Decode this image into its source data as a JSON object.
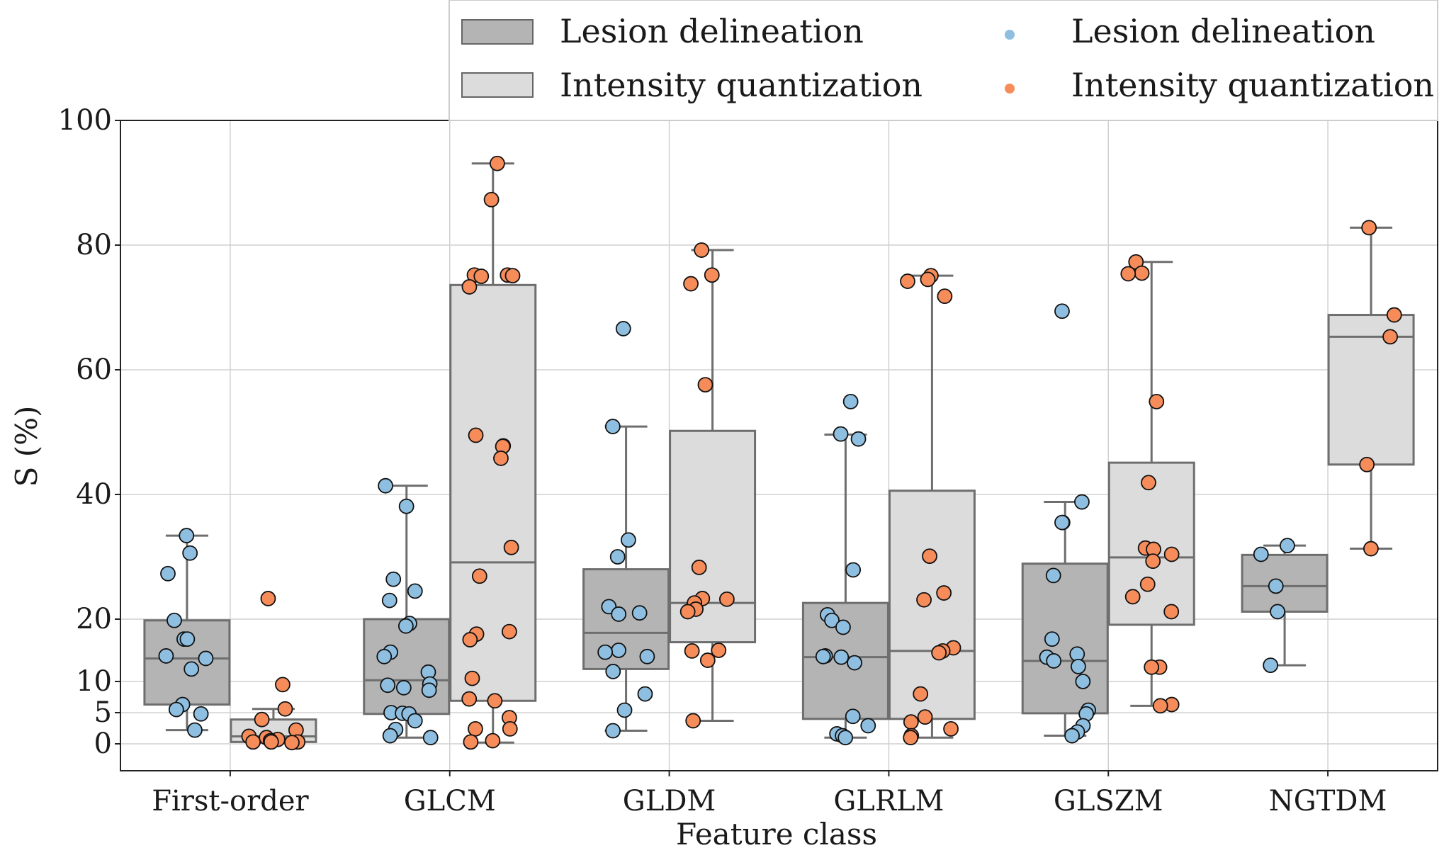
{
  "chart_data": {
    "type": "box",
    "title": "",
    "xlabel": "Feature class",
    "ylabel": "S (%)",
    "ylim": [
      -4.5,
      100
    ],
    "yticks": [
      0,
      5,
      10,
      20,
      40,
      60,
      80,
      100
    ],
    "grid": true,
    "categories": [
      "First-order",
      "GLCM",
      "GLDM",
      "GLRLM",
      "GLSZM",
      "NGTDM"
    ],
    "legend": {
      "position": "top-right",
      "box_entries": [
        {
          "label": "Lesion delineation",
          "color": "#b4b4b4"
        },
        {
          "label": "Intensity quantization",
          "color": "#dcdcdc"
        }
      ],
      "point_entries": [
        {
          "label": "Lesion delineation",
          "color": "#8fbfe0"
        },
        {
          "label": "Intensity quantization",
          "color": "#f58c5a"
        }
      ]
    },
    "series": [
      {
        "name": "Lesion delineation",
        "box_color": "#b4b4b4",
        "point_color": "#8fbfe0",
        "boxes": [
          {
            "category": "First-order",
            "whisker_low": 2.2,
            "q1": 6.3,
            "median": 13.7,
            "q3": 19.8,
            "whisker_high": 33.4
          },
          {
            "category": "GLCM",
            "whisker_low": 1.0,
            "q1": 4.8,
            "median": 10.2,
            "q3": 20.0,
            "whisker_high": 41.4
          },
          {
            "category": "GLDM",
            "whisker_low": 2.1,
            "q1": 12.0,
            "median": 17.8,
            "q3": 28.0,
            "whisker_high": 50.9
          },
          {
            "category": "GLRLM",
            "whisker_low": 1.0,
            "q1": 4.0,
            "median": 13.9,
            "q3": 22.6,
            "whisker_high": 49.6
          },
          {
            "category": "GLSZM",
            "whisker_low": 1.3,
            "q1": 4.9,
            "median": 13.3,
            "q3": 28.9,
            "whisker_high": 38.8
          },
          {
            "category": "NGTDM",
            "whisker_low": 12.6,
            "q1": 21.2,
            "median": 25.3,
            "q3": 30.3,
            "whisker_high": 31.8
          }
        ],
        "points": [
          [
            33.4,
            30.6,
            27.3,
            19.8,
            16.8,
            16.8,
            14.1,
            13.7,
            12.0,
            6.3,
            5.5,
            4.8,
            2.2
          ],
          [
            41.4,
            38.1,
            26.4,
            24.5,
            23.0,
            19.3,
            18.9,
            14.7,
            14.0,
            11.5,
            9.6,
            9.4,
            9.0,
            8.6,
            5.0,
            4.9,
            4.8,
            3.7,
            2.3,
            1.3,
            1.0
          ],
          [
            66.6,
            50.9,
            32.7,
            30.0,
            22.0,
            21.0,
            20.8,
            15.0,
            14.7,
            14.0,
            11.6,
            8.0,
            5.4,
            2.1
          ],
          [
            54.9,
            49.7,
            48.9,
            27.9,
            20.7,
            19.8,
            18.7,
            14.1,
            14.0,
            13.9,
            13.0,
            4.4,
            2.9,
            1.6,
            1.3,
            1.0
          ],
          [
            69.4,
            38.8,
            35.5,
            35.5,
            27.0,
            16.8,
            14.4,
            13.9,
            13.3,
            12.4,
            10.0,
            5.4,
            4.8,
            2.9,
            1.9,
            1.3
          ],
          [
            31.8,
            30.4,
            25.3,
            21.2,
            12.6
          ]
        ]
      },
      {
        "name": "Intensity quantization",
        "box_color": "#dcdcdc",
        "point_color": "#f58c5a",
        "boxes": [
          {
            "category": "First-order",
            "whisker_low": 0.2,
            "q1": 0.3,
            "median": 1.2,
            "q3": 3.9,
            "whisker_high": 5.6
          },
          {
            "category": "GLCM",
            "whisker_low": 0.2,
            "q1": 6.9,
            "median": 29.1,
            "q3": 73.6,
            "whisker_high": 93.1
          },
          {
            "category": "GLDM",
            "whisker_low": 3.7,
            "q1": 16.3,
            "median": 22.6,
            "q3": 50.2,
            "whisker_high": 79.2
          },
          {
            "category": "GLRLM",
            "whisker_low": 1.0,
            "q1": 4.0,
            "median": 14.9,
            "q3": 40.6,
            "whisker_high": 75.1
          },
          {
            "category": "GLSZM",
            "whisker_low": 6.1,
            "q1": 19.1,
            "median": 29.9,
            "q3": 45.1,
            "whisker_high": 77.3
          },
          {
            "category": "NGTDM",
            "whisker_low": 31.3,
            "q1": 44.8,
            "median": 65.3,
            "q3": 68.8,
            "whisker_high": 82.8
          }
        ],
        "points": [
          [
            23.3,
            9.5,
            5.6,
            3.9,
            2.2,
            1.2,
            1.0,
            0.7,
            0.5,
            0.3,
            0.3,
            0.3,
            0.2
          ],
          [
            93.1,
            87.3,
            75.2,
            75.2,
            75.1,
            75.0,
            73.3,
            49.5,
            47.8,
            47.7,
            45.8,
            31.5,
            26.9,
            18.0,
            17.6,
            16.7,
            10.5,
            7.2,
            6.9,
            4.2,
            2.4,
            2.4,
            0.5,
            0.3
          ],
          [
            79.2,
            75.2,
            73.8,
            57.6,
            28.3,
            23.3,
            23.2,
            22.6,
            21.6,
            21.2,
            15.0,
            14.9,
            13.4,
            3.7
          ],
          [
            75.1,
            74.5,
            74.2,
            71.8,
            30.1,
            24.2,
            23.1,
            15.4,
            14.9,
            14.6,
            8.0,
            4.3,
            3.5,
            2.4,
            1.3,
            1.0
          ],
          [
            77.3,
            75.5,
            75.4,
            54.9,
            41.9,
            31.4,
            31.2,
            30.4,
            29.3,
            25.6,
            23.6,
            21.2,
            12.3,
            12.3,
            6.3,
            6.1
          ],
          [
            82.8,
            68.8,
            65.3,
            44.8,
            31.3
          ]
        ]
      }
    ]
  }
}
